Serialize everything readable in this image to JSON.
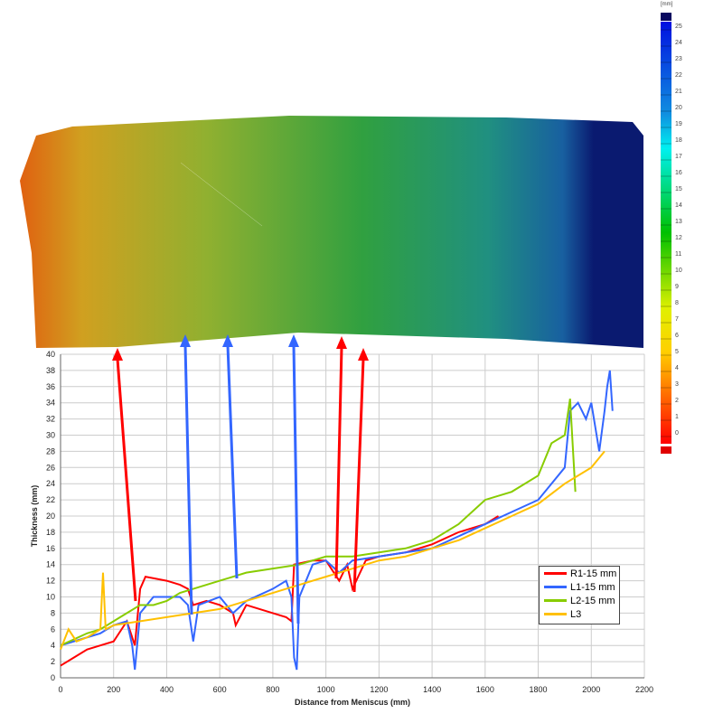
{
  "colorbar": {
    "unit": "[mm]",
    "ticks": [
      "25",
      "24",
      "23",
      "22",
      "21",
      "20",
      "19",
      "18",
      "17",
      "16",
      "15",
      "14",
      "13",
      "12",
      "11",
      "10",
      "9",
      "8",
      "7",
      "6",
      "5",
      "4",
      "3",
      "2",
      "1",
      "0"
    ]
  },
  "chart_data": {
    "type": "line",
    "title": "",
    "xlabel": "Distance from Meniscus (mm)",
    "ylabel": "Thickness (mm)",
    "xlim": [
      0,
      2200
    ],
    "ylim": [
      0,
      40
    ],
    "xticks": [
      "0",
      "200",
      "400",
      "600",
      "800",
      "1000",
      "1200",
      "1400",
      "1600",
      "1800",
      "2000",
      "2200"
    ],
    "yticks": [
      "0",
      "2",
      "4",
      "6",
      "8",
      "10",
      "12",
      "14",
      "16",
      "18",
      "20",
      "22",
      "24",
      "26",
      "28",
      "30",
      "32",
      "34",
      "36",
      "38",
      "40"
    ],
    "grid": true,
    "legend": "bottom-right",
    "series": [
      {
        "name": "R1-15 mm",
        "color": "#ff0000",
        "x": [
          0,
          50,
          100,
          150,
          200,
          250,
          280,
          300,
          320,
          400,
          450,
          480,
          500,
          550,
          600,
          650,
          660,
          700,
          750,
          800,
          850,
          870,
          880,
          950,
          1000,
          1050,
          1080,
          1100,
          1150,
          1200,
          1300,
          1400,
          1500,
          1550,
          1600,
          1650
        ],
        "y": [
          1.5,
          2.5,
          3.5,
          4,
          4.5,
          7,
          4,
          11,
          12.5,
          12,
          11.5,
          11,
          9,
          9.5,
          9,
          8,
          6.5,
          9,
          8.5,
          8,
          7.5,
          7,
          14,
          14.5,
          14.5,
          12,
          14,
          11,
          14.5,
          15,
          15.5,
          16.5,
          18,
          18.5,
          19,
          20
        ]
      },
      {
        "name": "L1-15 mm",
        "color": "#3366ff",
        "x": [
          0,
          100,
          150,
          200,
          250,
          270,
          280,
          300,
          350,
          400,
          450,
          480,
          500,
          520,
          600,
          650,
          700,
          800,
          850,
          870,
          880,
          890,
          900,
          950,
          1000,
          1050,
          1100,
          1200,
          1300,
          1400,
          1500,
          1600,
          1700,
          1800,
          1850,
          1900,
          1920,
          1950,
          1980,
          2000,
          2030,
          2050,
          2060,
          2070,
          2080
        ],
        "y": [
          4,
          5,
          5.5,
          6.5,
          7,
          4,
          1,
          8,
          10,
          10,
          10,
          9,
          4.5,
          9,
          10,
          8,
          9.5,
          11,
          12,
          10,
          2.5,
          1,
          10,
          14,
          14.5,
          13,
          14.5,
          15,
          15.5,
          16,
          17.5,
          19,
          20.5,
          22,
          24,
          26,
          33,
          34,
          32,
          34,
          28,
          33,
          36,
          38,
          33
        ]
      },
      {
        "name": "L2-15 mm",
        "color": "#88cc00",
        "x": [
          0,
          100,
          150,
          200,
          250,
          300,
          350,
          400,
          450,
          500,
          600,
          700,
          800,
          900,
          1000,
          1100,
          1200,
          1300,
          1400,
          1500,
          1600,
          1700,
          1800,
          1850,
          1900,
          1920,
          1940
        ],
        "y": [
          4,
          5.5,
          6,
          7,
          8,
          9,
          9,
          9.5,
          10.5,
          11,
          12,
          13,
          13.5,
          14,
          15,
          15,
          15.5,
          16,
          17,
          19,
          22,
          23,
          25,
          29,
          30,
          34.5,
          23
        ]
      },
      {
        "name": "L3",
        "color": "#ffc000",
        "x": [
          0,
          30,
          60,
          100,
          150,
          160,
          170,
          200,
          300,
          400,
          500,
          600,
          700,
          800,
          900,
          1000,
          1100,
          1200,
          1300,
          1400,
          1500,
          1600,
          1700,
          1800,
          1900,
          2000,
          2050
        ],
        "y": [
          3.5,
          6,
          4.5,
          5,
          6,
          13,
          6,
          6.5,
          7,
          7.5,
          8,
          8.5,
          9.5,
          10.5,
          11.5,
          12.5,
          13.5,
          14.5,
          15,
          16,
          17,
          18.5,
          20,
          21.5,
          24,
          26,
          28
        ]
      }
    ]
  }
}
